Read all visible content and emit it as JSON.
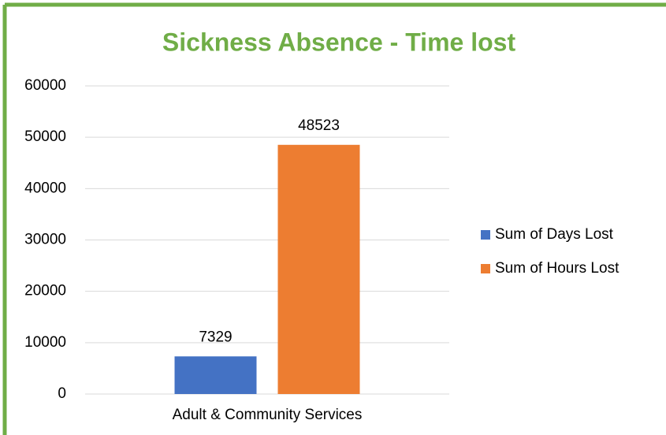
{
  "chart_data": {
    "type": "bar",
    "title": "Sickness Absence - Time lost",
    "categories": [
      "Adult & Community Services"
    ],
    "series": [
      {
        "name": "Sum of Days Lost",
        "color": "#4472c4",
        "values": [
          7329
        ]
      },
      {
        "name": "Sum of Hours Lost",
        "color": "#ed7d31",
        "values": [
          48523
        ]
      }
    ],
    "ylim": [
      0,
      60000
    ],
    "yticks": [
      0,
      10000,
      20000,
      30000,
      40000,
      50000,
      60000
    ],
    "grid": true,
    "legend": "right",
    "data_labels": true
  }
}
